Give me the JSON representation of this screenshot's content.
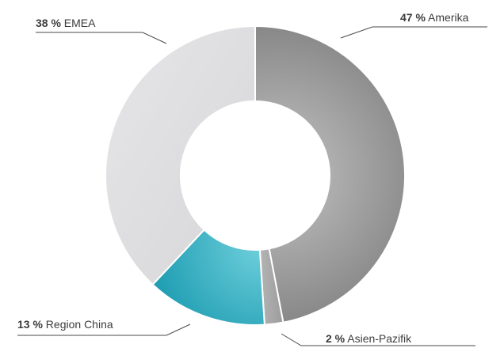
{
  "chart_data": {
    "type": "pie",
    "donut": true,
    "title": "",
    "slices": [
      {
        "label": "Amerika",
        "value": 47,
        "pct_text": "47 %",
        "color": "#6e6e6e"
      },
      {
        "label": "Asien-Pazifik",
        "value": 2,
        "pct_text": "2 %",
        "color": "#a8a8a8"
      },
      {
        "label": "Region China",
        "value": 13,
        "pct_text": "13 %",
        "color": "#29a9bc"
      },
      {
        "label": "EMEA",
        "value": 38,
        "pct_text": "38 %",
        "color": "#dcdcde"
      }
    ]
  }
}
